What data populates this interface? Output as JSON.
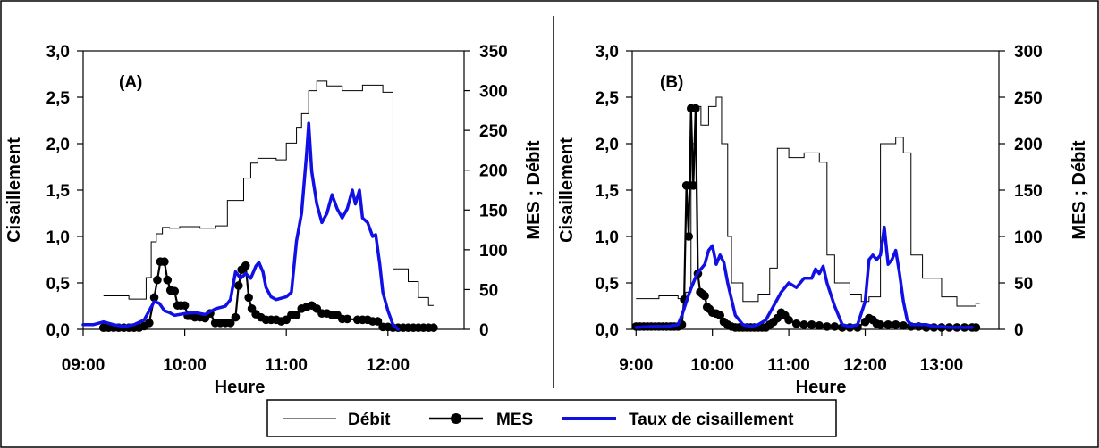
{
  "colors": {
    "debit": "#000000",
    "mes": "#000000",
    "taux": "#1010e6",
    "frame": "#000000"
  },
  "legend": {
    "items": [
      {
        "key": "debit",
        "label": "Débit",
        "style": "thin-line"
      },
      {
        "key": "mes",
        "label": "MES",
        "style": "line-marker"
      },
      {
        "key": "taux",
        "label": "Taux de cisaillement",
        "style": "thick-line"
      }
    ]
  },
  "chart_data": [
    {
      "type": "line",
      "panel_label": "(A)",
      "xlabel": "Heure",
      "ylabel": "Cisaillement",
      "y2label": "MES ; Débit",
      "xlim": [
        9.0,
        12.75
      ],
      "xticks": [
        9.0,
        10.0,
        11.0,
        12.0
      ],
      "xtick_labels": [
        "09:00",
        "10:00",
        "11:00",
        "12:00"
      ],
      "ylim": [
        0,
        3.0
      ],
      "yticks": [
        0,
        0.5,
        1.0,
        1.5,
        2.0,
        2.5,
        3.0
      ],
      "ytick_labels": [
        "0,0",
        "0,5",
        "1,0",
        "1,5",
        "2,0",
        "2,5",
        "3,0"
      ],
      "y2lim": [
        0,
        350
      ],
      "y2ticks": [
        0,
        50,
        100,
        150,
        200,
        250,
        300,
        350
      ],
      "y2tick_labels": [
        "0",
        "50",
        "100",
        "150",
        "200",
        "250",
        "300",
        "350"
      ],
      "series": [
        {
          "name": "Débit",
          "axis": "y2",
          "style": "step",
          "x": [
            9.2,
            9.45,
            9.62,
            9.67,
            9.72,
            9.78,
            9.85,
            9.95,
            10.15,
            10.3,
            10.42,
            10.58,
            10.65,
            10.72,
            10.9,
            11.0,
            11.1,
            11.15,
            11.22,
            11.3,
            11.4,
            11.55,
            11.75,
            11.95,
            12.05,
            12.2,
            12.3,
            12.4
          ],
          "y": [
            42,
            38,
            65,
            110,
            120,
            128,
            127,
            129,
            127,
            130,
            162,
            190,
            209,
            215,
            213,
            234,
            254,
            271,
            300,
            312,
            306,
            300,
            307,
            298,
            76,
            60,
            40,
            30
          ]
        },
        {
          "name": "MES",
          "axis": "y2",
          "style": "line-marker",
          "x": [
            9.2,
            9.25,
            9.3,
            9.35,
            9.4,
            9.45,
            9.5,
            9.55,
            9.6,
            9.65,
            9.7,
            9.73,
            9.76,
            9.8,
            9.83,
            9.86,
            9.9,
            9.93,
            9.96,
            10.0,
            10.03,
            10.06,
            10.1,
            10.15,
            10.2,
            10.25,
            10.3,
            10.35,
            10.4,
            10.45,
            10.5,
            10.53,
            10.56,
            10.6,
            10.63,
            10.66,
            10.7,
            10.75,
            10.8,
            10.85,
            10.9,
            10.95,
            11.0,
            11.05,
            11.1,
            11.15,
            11.2,
            11.25,
            11.3,
            11.35,
            11.4,
            11.45,
            11.5,
            11.55,
            11.6,
            11.7,
            11.75,
            11.8,
            11.85,
            11.9,
            11.95,
            12.0,
            12.05,
            12.1,
            12.15,
            12.2,
            12.25,
            12.3,
            12.35,
            12.4,
            12.45
          ],
          "y": [
            2,
            2,
            2,
            2,
            2,
            2,
            2,
            2,
            4,
            8,
            40,
            62,
            85,
            85,
            62,
            49,
            48,
            30,
            30,
            30,
            17,
            17,
            15,
            15,
            14,
            20,
            8,
            8,
            8,
            8,
            15,
            55,
            75,
            80,
            40,
            26,
            19,
            15,
            12,
            12,
            12,
            10,
            12,
            18,
            18,
            26,
            28,
            30,
            26,
            20,
            20,
            18,
            18,
            13,
            13,
            12,
            12,
            12,
            10,
            10,
            3,
            3,
            2,
            2,
            2,
            2,
            2,
            2,
            2,
            2,
            2
          ]
        },
        {
          "name": "Taux de cisaillement",
          "axis": "y",
          "style": "thick-line",
          "x": [
            9.0,
            9.1,
            9.2,
            9.3,
            9.4,
            9.5,
            9.6,
            9.65,
            9.7,
            9.75,
            9.8,
            9.85,
            9.9,
            10.0,
            10.1,
            10.2,
            10.3,
            10.4,
            10.45,
            10.5,
            10.55,
            10.6,
            10.65,
            10.7,
            10.73,
            10.77,
            10.8,
            10.85,
            10.9,
            11.0,
            11.05,
            11.1,
            11.15,
            11.2,
            11.22,
            11.25,
            11.3,
            11.35,
            11.4,
            11.45,
            11.5,
            11.55,
            11.6,
            11.65,
            11.68,
            11.72,
            11.75,
            11.8,
            11.85,
            11.88,
            11.92,
            11.95,
            12.0,
            12.05,
            12.1
          ],
          "y": [
            0.05,
            0.05,
            0.08,
            0.05,
            0.03,
            0.05,
            0.1,
            0.2,
            0.3,
            0.28,
            0.2,
            0.18,
            0.15,
            0.17,
            0.18,
            0.16,
            0.22,
            0.25,
            0.32,
            0.62,
            0.55,
            0.6,
            0.55,
            0.68,
            0.72,
            0.62,
            0.45,
            0.35,
            0.32,
            0.35,
            0.4,
            0.95,
            1.25,
            1.9,
            2.22,
            1.7,
            1.35,
            1.15,
            1.25,
            1.45,
            1.3,
            1.2,
            1.3,
            1.5,
            1.35,
            1.5,
            1.2,
            1.15,
            1.0,
            1.02,
            0.7,
            0.4,
            0.2,
            0.05,
            0.0
          ]
        }
      ]
    },
    {
      "type": "line",
      "panel_label": "(B)",
      "xlabel": "Heure",
      "ylabel": "Cisaillement",
      "y2label": "MES ; Débit",
      "xlim": [
        8.95,
        13.75
      ],
      "xticks": [
        9.0,
        10.0,
        11.0,
        12.0,
        13.0
      ],
      "xtick_labels": [
        "9:00",
        "10:00",
        "11:00",
        "12:00",
        "13:00"
      ],
      "ylim": [
        0,
        3.0
      ],
      "yticks": [
        0,
        0.5,
        1.0,
        1.5,
        2.0,
        2.5,
        3.0
      ],
      "ytick_labels": [
        "0,0",
        "0,5",
        "1,0",
        "1,5",
        "2,0",
        "2,5",
        "3,0"
      ],
      "y2lim": [
        0,
        300
      ],
      "y2ticks": [
        0,
        50,
        100,
        150,
        200,
        250,
        300
      ],
      "y2tick_labels": [
        "0",
        "50",
        "100",
        "150",
        "200",
        "250",
        "300"
      ],
      "series": [
        {
          "name": "Débit",
          "axis": "y2",
          "style": "step",
          "x": [
            9.0,
            9.3,
            9.55,
            9.65,
            9.72,
            9.78,
            9.85,
            9.95,
            10.05,
            10.12,
            10.2,
            10.25,
            10.4,
            10.6,
            10.75,
            10.85,
            11.0,
            11.2,
            11.4,
            11.5,
            11.6,
            11.8,
            11.95,
            12.05,
            12.2,
            12.4,
            12.5,
            12.6,
            12.75,
            13.0,
            13.2,
            13.45
          ],
          "y": [
            33,
            36,
            33,
            40,
            200,
            240,
            220,
            240,
            250,
            200,
            100,
            50,
            30,
            38,
            66,
            195,
            185,
            190,
            180,
            80,
            50,
            38,
            30,
            35,
            200,
            207,
            190,
            80,
            55,
            35,
            25,
            28
          ]
        },
        {
          "name": "MES",
          "axis": "y2",
          "style": "line-marker",
          "x": [
            9.0,
            9.05,
            9.1,
            9.15,
            9.2,
            9.25,
            9.3,
            9.35,
            9.4,
            9.45,
            9.5,
            9.55,
            9.6,
            9.63,
            9.66,
            9.69,
            9.72,
            9.75,
            9.78,
            9.81,
            9.84,
            9.87,
            9.9,
            9.93,
            9.96,
            10.0,
            10.05,
            10.1,
            10.15,
            10.2,
            10.25,
            10.3,
            10.35,
            10.4,
            10.45,
            10.5,
            10.55,
            10.6,
            10.65,
            10.7,
            10.75,
            10.8,
            10.85,
            10.9,
            10.95,
            11.0,
            11.1,
            11.2,
            11.3,
            11.4,
            11.5,
            11.6,
            11.7,
            11.8,
            11.9,
            12.0,
            12.05,
            12.1,
            12.15,
            12.2,
            12.3,
            12.4,
            12.5,
            12.6,
            12.7,
            12.8,
            12.9,
            13.0,
            13.1,
            13.2,
            13.3,
            13.4,
            13.45
          ],
          "y": [
            3,
            3,
            3,
            3,
            3,
            3,
            3,
            3,
            3,
            3,
            3,
            3,
            5,
            32,
            155,
            100,
            238,
            155,
            238,
            60,
            40,
            38,
            36,
            24,
            22,
            18,
            17,
            15,
            8,
            5,
            3,
            2,
            2,
            2,
            2,
            2,
            2,
            2,
            2,
            2,
            5,
            8,
            12,
            18,
            15,
            10,
            6,
            5,
            5,
            4,
            3,
            3,
            2,
            2,
            2,
            8,
            12,
            10,
            6,
            5,
            5,
            5,
            4,
            3,
            3,
            2,
            2,
            2,
            2,
            2,
            2,
            2,
            2
          ]
        },
        {
          "name": "Taux de cisaillement",
          "axis": "y",
          "style": "thick-line",
          "x": [
            9.0,
            9.2,
            9.4,
            9.55,
            9.6,
            9.7,
            9.8,
            9.9,
            9.95,
            10.0,
            10.05,
            10.1,
            10.15,
            10.2,
            10.3,
            10.4,
            10.5,
            10.6,
            10.7,
            10.8,
            10.9,
            11.0,
            11.1,
            11.2,
            11.3,
            11.35,
            11.4,
            11.45,
            11.5,
            11.6,
            11.7,
            11.8,
            11.9,
            12.0,
            12.05,
            12.1,
            12.15,
            12.2,
            12.25,
            12.3,
            12.35,
            12.4,
            12.45,
            12.5,
            12.55,
            12.6,
            12.7,
            12.8,
            12.9,
            13.0,
            13.1,
            13.2,
            13.3,
            13.4
          ],
          "y": [
            0.02,
            0.03,
            0.03,
            0.05,
            0.15,
            0.4,
            0.6,
            0.7,
            0.85,
            0.9,
            0.7,
            0.8,
            0.72,
            0.5,
            0.15,
            0.05,
            0.03,
            0.05,
            0.1,
            0.25,
            0.4,
            0.5,
            0.45,
            0.55,
            0.55,
            0.65,
            0.6,
            0.68,
            0.5,
            0.25,
            0.05,
            0.03,
            0.05,
            0.3,
            0.75,
            0.8,
            0.75,
            0.8,
            1.1,
            0.7,
            0.75,
            0.85,
            0.6,
            0.3,
            0.1,
            0.05,
            0.05,
            0.05,
            0.03,
            0.03,
            0.02,
            0.02,
            0.02,
            0.02
          ]
        }
      ]
    }
  ]
}
